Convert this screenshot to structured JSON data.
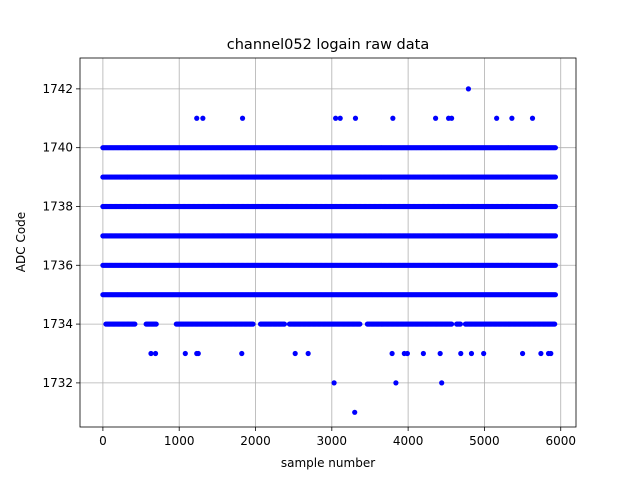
{
  "chart_data": {
    "type": "scatter",
    "title": "channel052 logain raw data",
    "xlabel": "sample number",
    "ylabel": "ADC Code",
    "xlim": [
      -300,
      6200
    ],
    "ylim": [
      1730.5,
      1743.05
    ],
    "xticks": [
      0,
      1000,
      2000,
      3000,
      4000,
      5000,
      6000
    ],
    "yticks": [
      1732,
      1734,
      1736,
      1738,
      1740,
      1742
    ],
    "grid": true,
    "marker_color": "#0000ff",
    "x_span": [
      0,
      5930
    ],
    "dense_levels": [
      1735,
      1736,
      1737,
      1738,
      1739,
      1740
    ],
    "series": [
      {
        "name": "",
        "points": [
          {
            "x": 3300,
            "y": 1731
          },
          {
            "x": 3030,
            "y": 1732
          },
          {
            "x": 3840,
            "y": 1732
          },
          {
            "x": 4440,
            "y": 1732
          },
          {
            "x": 630,
            "y": 1733
          },
          {
            "x": 690,
            "y": 1733
          },
          {
            "x": 1080,
            "y": 1733
          },
          {
            "x": 1230,
            "y": 1733
          },
          {
            "x": 1250,
            "y": 1733
          },
          {
            "x": 1820,
            "y": 1733
          },
          {
            "x": 2520,
            "y": 1733
          },
          {
            "x": 2690,
            "y": 1733
          },
          {
            "x": 3790,
            "y": 1733
          },
          {
            "x": 3950,
            "y": 1733
          },
          {
            "x": 3990,
            "y": 1733
          },
          {
            "x": 4200,
            "y": 1733
          },
          {
            "x": 4420,
            "y": 1733
          },
          {
            "x": 4690,
            "y": 1733
          },
          {
            "x": 4830,
            "y": 1733
          },
          {
            "x": 4990,
            "y": 1733
          },
          {
            "x": 5500,
            "y": 1733
          },
          {
            "x": 5740,
            "y": 1733
          },
          {
            "x": 5840,
            "y": 1733
          },
          {
            "x": 5870,
            "y": 1733
          },
          {
            "x": 1230,
            "y": 1741
          },
          {
            "x": 1310,
            "y": 1741
          },
          {
            "x": 1830,
            "y": 1741
          },
          {
            "x": 3050,
            "y": 1741
          },
          {
            "x": 3110,
            "y": 1741
          },
          {
            "x": 3310,
            "y": 1741
          },
          {
            "x": 3800,
            "y": 1741
          },
          {
            "x": 4360,
            "y": 1741
          },
          {
            "x": 4530,
            "y": 1741
          },
          {
            "x": 4570,
            "y": 1741
          },
          {
            "x": 5160,
            "y": 1741
          },
          {
            "x": 5360,
            "y": 1741
          },
          {
            "x": 5630,
            "y": 1741
          },
          {
            "x": 4790,
            "y": 1742
          }
        ]
      }
    ]
  }
}
